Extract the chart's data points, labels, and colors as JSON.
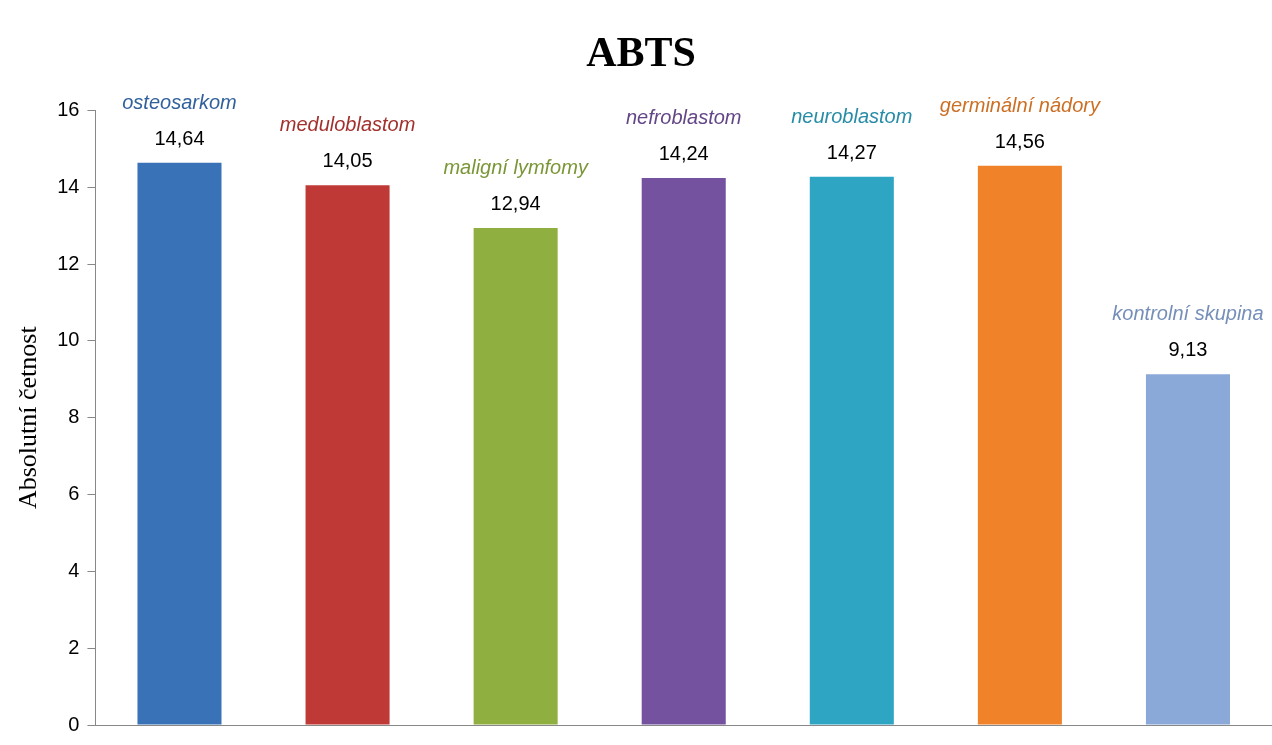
{
  "chart_data": {
    "type": "bar",
    "title": "ABTS",
    "ylabel": "Absolutní četnost",
    "categories": [
      "osteosarkom",
      "meduloblastom",
      "maligní lymfomy",
      "nefroblastom",
      "neuroblastom",
      "germinální nádory",
      "kontrolní skupina"
    ],
    "values": [
      14.64,
      14.05,
      12.94,
      14.24,
      14.27,
      14.56,
      9.13
    ],
    "value_labels": [
      "14,64",
      "14,05",
      "12,94",
      "14,24",
      "14,27",
      "14,56",
      "9,13"
    ],
    "colors": [
      "#3a72b8",
      "#bf3a36",
      "#8fb040",
      "#74529f",
      "#2ea5c3",
      "#f0822a",
      "#8aa8d8"
    ],
    "ylim": [
      0,
      16
    ],
    "yticks": [
      0,
      2,
      4,
      6,
      8,
      10,
      12,
      14,
      16
    ],
    "grid": false,
    "legend": false,
    "tick_labels": "y"
  }
}
